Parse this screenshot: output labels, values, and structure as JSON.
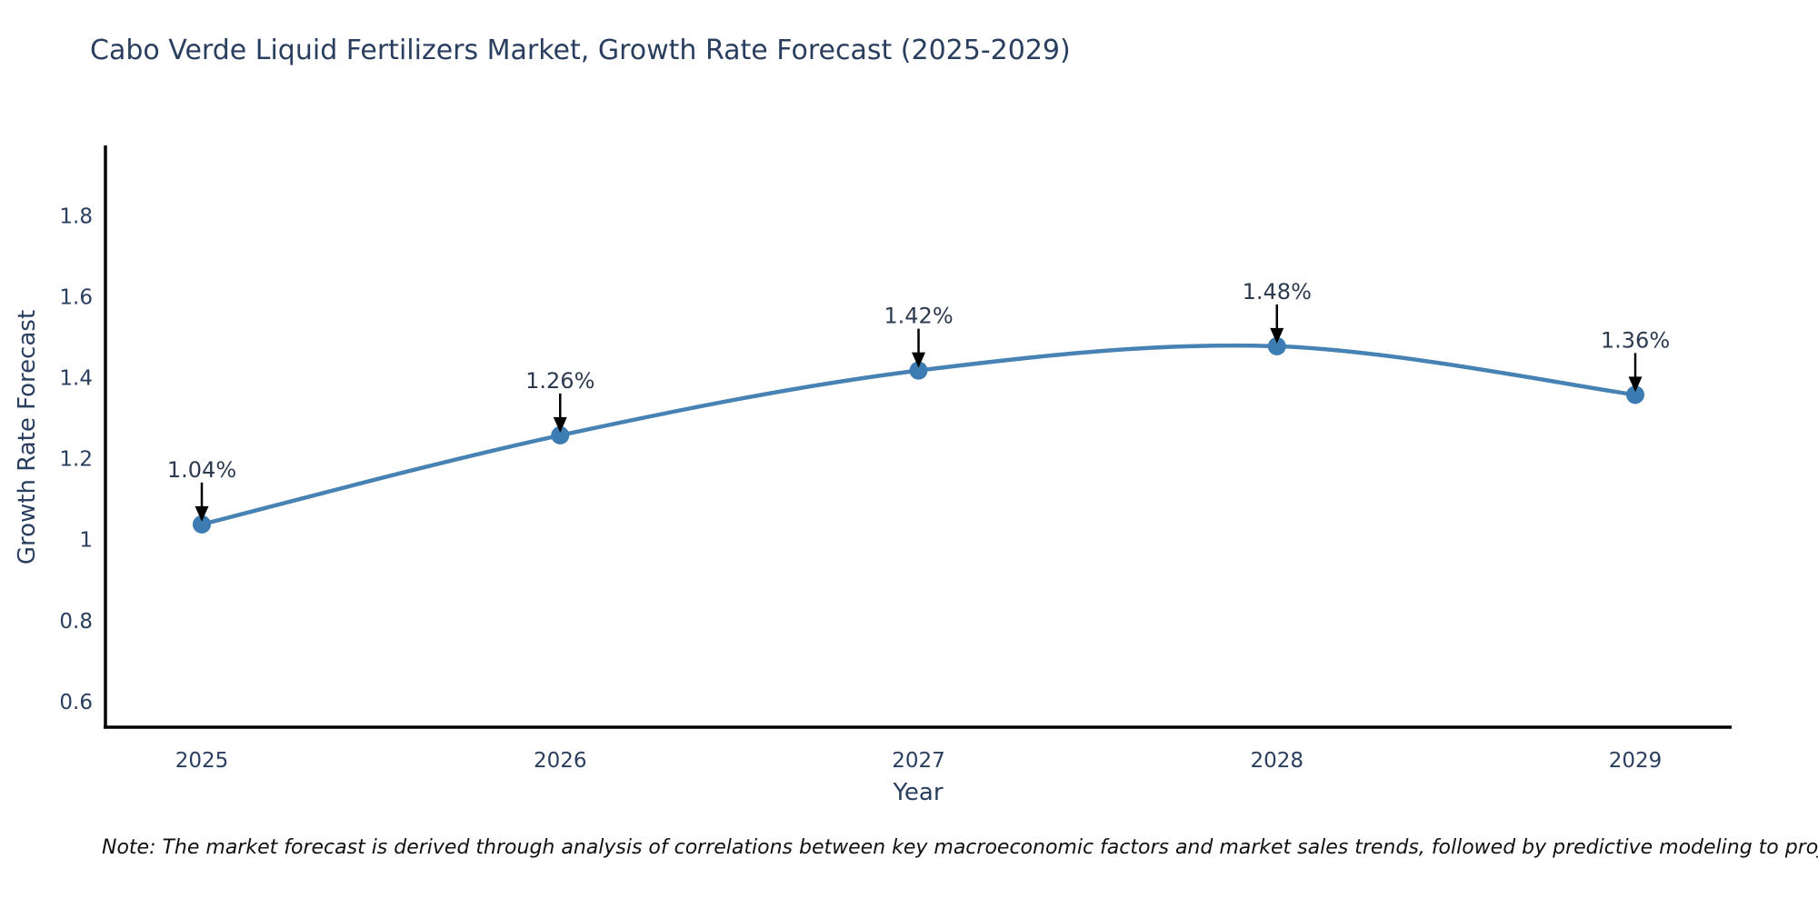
{
  "chart_data": {
    "type": "line",
    "line_shape": "spline",
    "title": "Cabo Verde Liquid Fertilizers Market, Growth Rate Forecast (2025-2029)",
    "xlabel": "Year",
    "ylabel": "Growth Rate Forecast",
    "note": "Note: The market forecast is derived through analysis of correlations between key macroeconomic factors and market sales trends, followed by predictive modeling to project future sales",
    "categories": [
      "2025",
      "2026",
      "2027",
      "2028",
      "2029"
    ],
    "values": [
      1.04,
      1.26,
      1.42,
      1.48,
      1.36
    ],
    "point_labels": [
      "1.04%",
      "1.26%",
      "1.42%",
      "1.48%",
      "1.36%"
    ],
    "ylim": [
      0.539,
      1.976
    ],
    "ytick_values": [
      0.6,
      0.8,
      1.0,
      1.2,
      1.4,
      1.6,
      1.8
    ],
    "ytick_labels": [
      "0.6",
      "0.8",
      "1",
      "1.2",
      "1.4",
      "1.6",
      "1.8"
    ],
    "grid": false,
    "legend": "none",
    "colors": {
      "line": "#4682b4",
      "marker": "#3d7cb2",
      "axis_line": "#000000",
      "tick_text": "#2a3f5f",
      "annotation_text": "#2d3b50",
      "arrow": "#000000",
      "note_text": "#111111",
      "background": "#ffffff"
    }
  }
}
